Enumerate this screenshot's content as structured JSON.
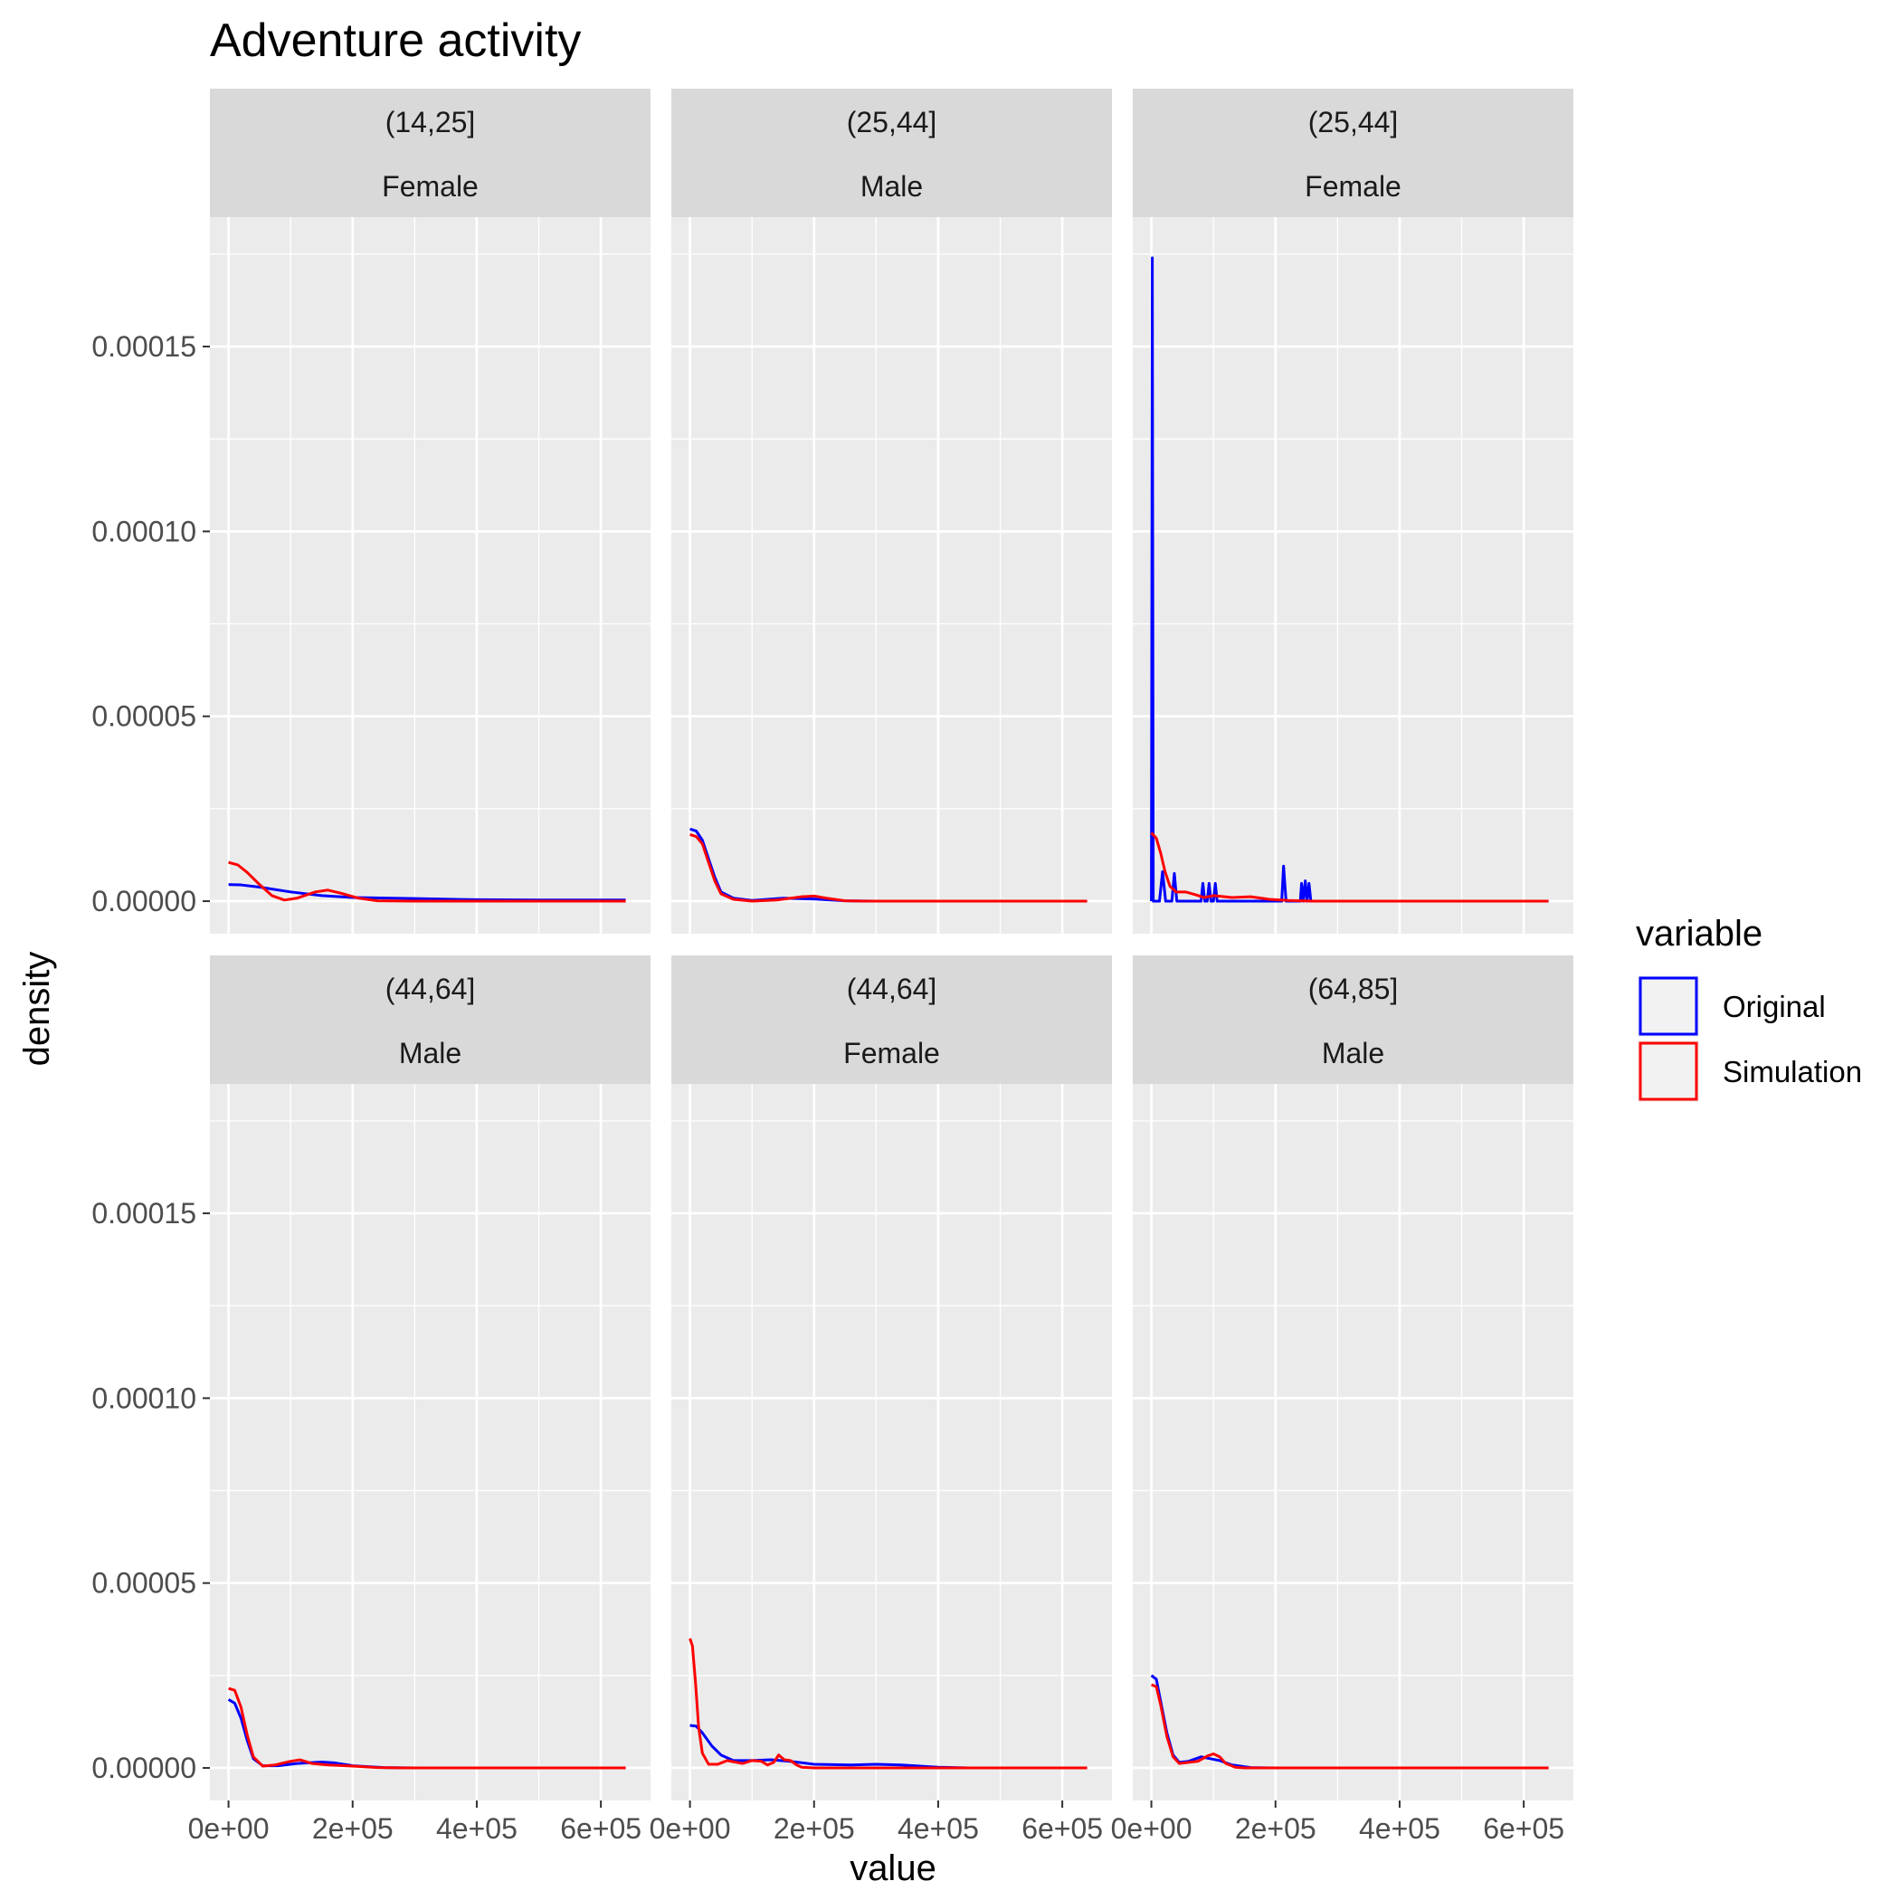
{
  "chart_data": {
    "type": "line",
    "title": "Adventure activity",
    "xlabel": "value",
    "ylabel": "density",
    "xlim": [
      -30000,
      680000
    ],
    "ylim": [
      -8.8e-06,
      0.000185
    ],
    "x_ticks": [
      0,
      200000,
      400000,
      600000
    ],
    "x_tick_labels": [
      "0e+00",
      "2e+05",
      "4e+05",
      "6e+05"
    ],
    "y_ticks": [
      0,
      5e-05,
      0.0001,
      0.00015
    ],
    "y_tick_labels": [
      "0.00000",
      "0.00005",
      "0.00010",
      "0.00015"
    ],
    "grid": true,
    "legend": {
      "title": "variable",
      "position": "right",
      "entries": [
        {
          "name": "Original",
          "color": "#0000FF"
        },
        {
          "name": "Simulation",
          "color": "#FF0000"
        }
      ]
    },
    "panels": [
      {
        "age": "(14,25]",
        "sex": "Female",
        "series": [
          {
            "name": "Original",
            "color": "#0000FF",
            "points": [
              [
                0,
                4.5e-06
              ],
              [
                20000,
                4.4e-06
              ],
              [
                50000,
                3.8e-06
              ],
              [
                100000,
                2.5e-06
              ],
              [
                150000,
                1.5e-06
              ],
              [
                200000,
                1e-06
              ],
              [
                300000,
                7e-07
              ],
              [
                400000,
                4e-07
              ],
              [
                500000,
                3e-07
              ],
              [
                640000,
                3e-07
              ]
            ]
          },
          {
            "name": "Simulation",
            "color": "#FF0000",
            "points": [
              [
                0,
                1.05e-05
              ],
              [
                15000,
                9.8e-06
              ],
              [
                30000,
                7.8e-06
              ],
              [
                50000,
                4.5e-06
              ],
              [
                70000,
                1.5e-06
              ],
              [
                90000,
                3e-07
              ],
              [
                110000,
                8e-07
              ],
              [
                140000,
                2.5e-06
              ],
              [
                160000,
                3e-06
              ],
              [
                180000,
                2.2e-06
              ],
              [
                210000,
                8e-07
              ],
              [
                240000,
                1e-07
              ],
              [
                300000,
                0
              ],
              [
                640000,
                0
              ]
            ]
          }
        ]
      },
      {
        "age": "(25,44]",
        "sex": "Male",
        "series": [
          {
            "name": "Original",
            "color": "#0000FF",
            "points": [
              [
                0,
                1.95e-05
              ],
              [
                10000,
                1.9e-05
              ],
              [
                20000,
                1.65e-05
              ],
              [
                30000,
                1.15e-05
              ],
              [
                40000,
                6.5e-06
              ],
              [
                50000,
                2.5e-06
              ],
              [
                70000,
                8e-07
              ],
              [
                100000,
                2e-07
              ],
              [
                150000,
                8e-07
              ],
              [
                200000,
                6e-07
              ],
              [
                250000,
                1e-07
              ],
              [
                300000,
                0
              ],
              [
                640000,
                0
              ]
            ]
          },
          {
            "name": "Simulation",
            "color": "#FF0000",
            "points": [
              [
                0,
                1.8e-05
              ],
              [
                10000,
                1.75e-05
              ],
              [
                20000,
                1.55e-05
              ],
              [
                30000,
                1.05e-05
              ],
              [
                40000,
                5.5e-06
              ],
              [
                50000,
                2e-06
              ],
              [
                70000,
                5e-07
              ],
              [
                100000,
                0
              ],
              [
                140000,
                3e-07
              ],
              [
                180000,
                1.2e-06
              ],
              [
                200000,
                1.4e-06
              ],
              [
                220000,
                8e-07
              ],
              [
                250000,
                1e-07
              ],
              [
                280000,
                0
              ],
              [
                640000,
                0
              ]
            ]
          }
        ]
      },
      {
        "age": "(25,44]",
        "sex": "Female",
        "series": [
          {
            "name": "Original",
            "color": "#0000FF",
            "points": [
              [
                0,
                0
              ],
              [
                1500,
                0.000174
              ],
              [
                3000,
                0
              ],
              [
                13000,
                0
              ],
              [
                18000,
                8e-06
              ],
              [
                23000,
                0
              ],
              [
                33000,
                0
              ],
              [
                37000,
                7.5e-06
              ],
              [
                41000,
                0
              ],
              [
                80000,
                0
              ],
              [
                83000,
                4.8e-06
              ],
              [
                86000,
                0
              ],
              [
                90000,
                0
              ],
              [
                93000,
                4.8e-06
              ],
              [
                96000,
                0
              ],
              [
                100000,
                0
              ],
              [
                103000,
                4.8e-06
              ],
              [
                106000,
                0
              ],
              [
                210000,
                0
              ],
              [
                213000,
                9.5e-06
              ],
              [
                217000,
                0
              ],
              [
                240000,
                0
              ],
              [
                242000,
                4.8e-06
              ],
              [
                245000,
                0
              ],
              [
                248000,
                5.5e-06
              ],
              [
                251000,
                0
              ],
              [
                254000,
                4.8e-06
              ],
              [
                257000,
                0
              ],
              [
                640000,
                0
              ]
            ]
          },
          {
            "name": "Simulation",
            "color": "#FF0000",
            "points": [
              [
                0,
                1.85e-05
              ],
              [
                8000,
                1.7e-05
              ],
              [
                15000,
                1.3e-05
              ],
              [
                22000,
                8e-06
              ],
              [
                30000,
                4e-06
              ],
              [
                40000,
                2.5e-06
              ],
              [
                55000,
                2.5e-06
              ],
              [
                70000,
                1.8e-06
              ],
              [
                85000,
                1e-06
              ],
              [
                100000,
                1.5e-06
              ],
              [
                130000,
                1e-06
              ],
              [
                160000,
                1.2e-06
              ],
              [
                190000,
                5e-07
              ],
              [
                220000,
                2e-07
              ],
              [
                260000,
                0
              ],
              [
                640000,
                0
              ]
            ]
          }
        ]
      },
      {
        "age": "(44,64]",
        "sex": "Male",
        "series": [
          {
            "name": "Original",
            "color": "#0000FF",
            "points": [
              [
                0,
                1.85e-05
              ],
              [
                10000,
                1.75e-05
              ],
              [
                20000,
                1.35e-05
              ],
              [
                30000,
                7.5e-06
              ],
              [
                40000,
                2.5e-06
              ],
              [
                55000,
                6e-07
              ],
              [
                80000,
                6e-07
              ],
              [
                110000,
                1.2e-06
              ],
              [
                150000,
                1.6e-06
              ],
              [
                170000,
                1.4e-06
              ],
              [
                200000,
                6e-07
              ],
              [
                250000,
                1e-07
              ],
              [
                300000,
                0
              ],
              [
                640000,
                0
              ]
            ]
          },
          {
            "name": "Simulation",
            "color": "#FF0000",
            "points": [
              [
                0,
                2.15e-05
              ],
              [
                10000,
                2.1e-05
              ],
              [
                20000,
                1.65e-05
              ],
              [
                30000,
                9e-06
              ],
              [
                40000,
                3e-06
              ],
              [
                55000,
                5e-07
              ],
              [
                75000,
                8e-07
              ],
              [
                100000,
                1.8e-06
              ],
              [
                115000,
                2.2e-06
              ],
              [
                135000,
                1.2e-06
              ],
              [
                160000,
                8e-07
              ],
              [
                200000,
                5e-07
              ],
              [
                240000,
                1e-07
              ],
              [
                280000,
                0
              ],
              [
                640000,
                0
              ]
            ]
          }
        ]
      },
      {
        "age": "(44,64]",
        "sex": "Female",
        "series": [
          {
            "name": "Original",
            "color": "#0000FF",
            "points": [
              [
                0,
                1.15e-05
              ],
              [
                10000,
                1.13e-05
              ],
              [
                20000,
                9.5e-06
              ],
              [
                35000,
                6e-06
              ],
              [
                50000,
                3.5e-06
              ],
              [
                70000,
                2e-06
              ],
              [
                100000,
                2e-06
              ],
              [
                130000,
                2.2e-06
              ],
              [
                160000,
                1.8e-06
              ],
              [
                200000,
                1e-06
              ],
              [
                260000,
                8e-07
              ],
              [
                300000,
                1e-06
              ],
              [
                340000,
                8e-07
              ],
              [
                400000,
                2e-07
              ],
              [
                450000,
                0
              ],
              [
                640000,
                0
              ]
            ]
          },
          {
            "name": "Simulation",
            "color": "#FF0000",
            "points": [
              [
                0,
                3.5e-05
              ],
              [
                4000,
                3.3e-05
              ],
              [
                9000,
                2.3e-05
              ],
              [
                14000,
                1.1e-05
              ],
              [
                20000,
                4e-06
              ],
              [
                30000,
                1e-06
              ],
              [
                45000,
                1e-06
              ],
              [
                60000,
                2e-06
              ],
              [
                85000,
                1.2e-06
              ],
              [
                100000,
                2e-06
              ],
              [
                115000,
                1.8e-06
              ],
              [
                125000,
                8e-07
              ],
              [
                135000,
                1.5e-06
              ],
              [
                143000,
                3.5e-06
              ],
              [
                152000,
                2.2e-06
              ],
              [
                162000,
                2e-06
              ],
              [
                172000,
                8e-07
              ],
              [
                180000,
                2e-07
              ],
              [
                200000,
                0
              ],
              [
                640000,
                0
              ]
            ]
          }
        ]
      },
      {
        "age": "(64,85]",
        "sex": "Male",
        "series": [
          {
            "name": "Original",
            "color": "#0000FF",
            "points": [
              [
                0,
                2.5e-05
              ],
              [
                8000,
                2.4e-05
              ],
              [
                15000,
                1.8e-05
              ],
              [
                25000,
                9.5e-06
              ],
              [
                35000,
                3.5e-06
              ],
              [
                45000,
                1.5e-06
              ],
              [
                60000,
                1.8e-06
              ],
              [
                80000,
                3e-06
              ],
              [
                95000,
                2.5e-06
              ],
              [
                110000,
                2e-06
              ],
              [
                130000,
                8e-07
              ],
              [
                160000,
                1e-07
              ],
              [
                200000,
                0
              ],
              [
                640000,
                0
              ]
            ]
          },
          {
            "name": "Simulation",
            "color": "#FF0000",
            "points": [
              [
                0,
                2.25e-05
              ],
              [
                8000,
                2.2e-05
              ],
              [
                15000,
                1.7e-05
              ],
              [
                25000,
                8.5e-06
              ],
              [
                35000,
                3e-06
              ],
              [
                45000,
                1.2e-06
              ],
              [
                60000,
                1.5e-06
              ],
              [
                75000,
                1.8e-06
              ],
              [
                90000,
                3.2e-06
              ],
              [
                100000,
                3.8e-06
              ],
              [
                110000,
                3e-06
              ],
              [
                120000,
                1.2e-06
              ],
              [
                135000,
                2e-07
              ],
              [
                150000,
                0
              ],
              [
                640000,
                0
              ]
            ]
          }
        ]
      }
    ]
  }
}
